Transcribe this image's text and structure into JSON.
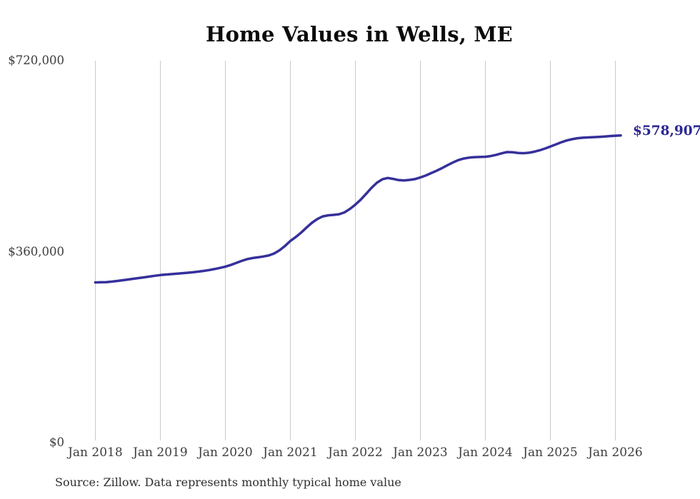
{
  "title": "Home Values in Wells, ME",
  "end_label": "$578,907",
  "source_note": "Source: Zillow. Data represents monthly typical home value",
  "colors": {
    "line": "#36309b",
    "end_label": "#2b2694",
    "grid": "#cacaca",
    "title": "#0b0b0b",
    "axis_text": "#3d3d3d",
    "background": "#ffffff"
  },
  "chart_data": {
    "type": "line",
    "title": "Home Values in Wells, ME",
    "xlabel": "",
    "ylabel": "",
    "ylim": [
      0,
      720000
    ],
    "grid": "vertical-only",
    "legend": "none",
    "y_tick_values": [
      0,
      360000,
      720000
    ],
    "y_tick_labels": [
      "$0",
      "$360,000",
      "$720,000"
    ],
    "x_tick_labels": [
      "Jan 2018",
      "Jan 2019",
      "Jan 2020",
      "Jan 2021",
      "Jan 2022",
      "Jan 2023",
      "Jan 2024",
      "Jan 2025",
      "Jan 2026"
    ],
    "final_value": 578907,
    "series": [
      {
        "name": "Typical home value (USD)",
        "months": [
          "2018-01",
          "2018-02",
          "2018-03",
          "2018-04",
          "2018-05",
          "2018-06",
          "2018-07",
          "2018-08",
          "2018-09",
          "2018-10",
          "2018-11",
          "2018-12",
          "2019-01",
          "2019-02",
          "2019-03",
          "2019-04",
          "2019-05",
          "2019-06",
          "2019-07",
          "2019-08",
          "2019-09",
          "2019-10",
          "2019-11",
          "2019-12",
          "2020-01",
          "2020-02",
          "2020-03",
          "2020-04",
          "2020-05",
          "2020-06",
          "2020-07",
          "2020-08",
          "2020-09",
          "2020-10",
          "2020-11",
          "2020-12",
          "2021-01",
          "2021-02",
          "2021-03",
          "2021-04",
          "2021-05",
          "2021-06",
          "2021-07",
          "2021-08",
          "2021-09",
          "2021-10",
          "2021-11",
          "2021-12",
          "2022-01",
          "2022-02",
          "2022-03",
          "2022-04",
          "2022-05",
          "2022-06",
          "2022-07",
          "2022-08",
          "2022-09",
          "2022-10",
          "2022-11",
          "2022-12",
          "2023-01",
          "2023-02",
          "2023-03",
          "2023-04",
          "2023-05",
          "2023-06",
          "2023-07",
          "2023-08",
          "2023-09",
          "2023-10",
          "2023-11",
          "2023-12",
          "2024-01",
          "2024-02",
          "2024-03",
          "2024-04",
          "2024-05",
          "2024-06",
          "2024-07",
          "2024-08",
          "2024-09",
          "2024-10",
          "2024-11",
          "2024-12",
          "2025-01",
          "2025-02",
          "2025-03",
          "2025-04",
          "2025-05",
          "2025-06",
          "2025-07",
          "2025-08",
          "2025-09",
          "2025-10",
          "2025-11",
          "2025-12",
          "2026-01",
          "2026-02"
        ],
        "values": [
          302000,
          302200,
          302600,
          303500,
          304700,
          306000,
          307400,
          308800,
          310200,
          311600,
          313000,
          314500,
          315900,
          316800,
          317600,
          318400,
          319200,
          320100,
          321100,
          322300,
          323700,
          325300,
          327200,
          329300,
          331600,
          334800,
          338600,
          342500,
          345800,
          347900,
          349300,
          350800,
          352800,
          356500,
          362500,
          370500,
          380000,
          387500,
          396000,
          405500,
          414500,
          421500,
          426500,
          428500,
          429300,
          430500,
          434000,
          440500,
          448500,
          458000,
          469000,
          480500,
          490000,
          496500,
          498900,
          497200,
          494800,
          494200,
          495300,
          496800,
          499800,
          503500,
          508000,
          512500,
          517500,
          523000,
          528000,
          532500,
          535500,
          537300,
          538200,
          538400,
          538800,
          540200,
          542500,
          545300,
          547800,
          547300,
          546100,
          545600,
          546400,
          548300,
          551000,
          554300,
          558200,
          562000,
          566000,
          569500,
          572000,
          573800,
          574800,
          575300,
          575800,
          576400,
          577100,
          577900,
          578500,
          578907
        ]
      }
    ]
  }
}
